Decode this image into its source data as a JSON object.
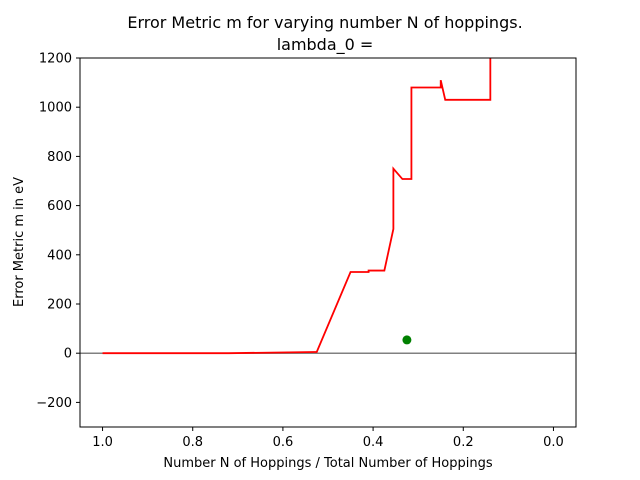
{
  "chart_data": {
    "type": "line",
    "title": "Error Metric m for varying number N of hoppings.",
    "subtitle": "lambda_0 =",
    "xlabel": "Number N of Hoppings / Total Number of Hoppings",
    "ylabel": "Error Metric m in eV",
    "xlim": [
      1.05,
      -0.05
    ],
    "ylim": [
      -300,
      1200
    ],
    "x_inverted": true,
    "xticks": [
      1.0,
      0.8,
      0.6,
      0.4,
      0.2,
      0.0
    ],
    "xtick_labels": [
      "1.0",
      "0.8",
      "0.6",
      "0.4",
      "0.2",
      "0.0"
    ],
    "yticks": [
      -200,
      0,
      200,
      400,
      600,
      800,
      1000,
      1200
    ],
    "ytick_labels": [
      "−200",
      "0",
      "200",
      "400",
      "600",
      "800",
      "1000",
      "1200"
    ],
    "grid": false,
    "legend": "none",
    "reference_line": {
      "y": 0,
      "color": "#808080"
    },
    "series": [
      {
        "color": "#ff0000",
        "points": [
          [
            1.0,
            0
          ],
          [
            0.72,
            0
          ],
          [
            0.53,
            5
          ],
          [
            0.525,
            5
          ],
          [
            0.45,
            330
          ],
          [
            0.41,
            330
          ],
          [
            0.41,
            336
          ],
          [
            0.375,
            336
          ],
          [
            0.355,
            505
          ],
          [
            0.355,
            750
          ],
          [
            0.335,
            708
          ],
          [
            0.32,
            708
          ],
          [
            0.315,
            708
          ],
          [
            0.315,
            1080
          ],
          [
            0.25,
            1080
          ],
          [
            0.25,
            1110
          ],
          [
            0.24,
            1030
          ],
          [
            0.14,
            1030
          ],
          [
            0.14,
            1200
          ]
        ]
      }
    ],
    "markers": [
      {
        "x": 0.325,
        "y": 54,
        "color": "#008000"
      }
    ]
  }
}
